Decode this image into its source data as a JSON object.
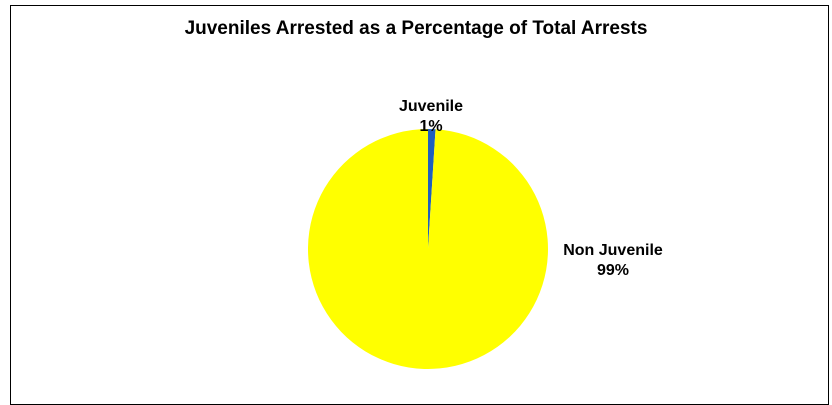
{
  "chart_data": {
    "type": "pie",
    "title": "Juveniles Arrested as a Percentage of Total Arrests",
    "categories": [
      "Juvenile",
      "Non Juvenile"
    ],
    "values": [
      1,
      99
    ],
    "value_labels": [
      "1%",
      "99%"
    ],
    "colors": [
      "#1f5fbf",
      "#ffff00"
    ],
    "legend": "none",
    "data_labels": "outside"
  }
}
